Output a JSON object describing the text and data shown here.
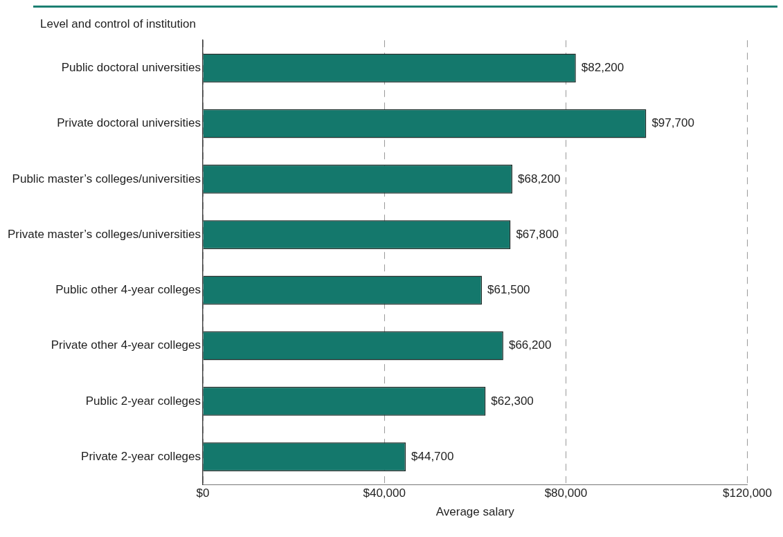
{
  "chart_data": {
    "type": "bar",
    "orientation": "horizontal",
    "ylabel": "Level and control of institution",
    "xlabel": "Average salary",
    "categories": [
      "Public doctoral universities",
      "Private doctoral universities",
      "Public master’s colleges/universities",
      "Private master’s colleges/universities",
      "Public other 4-year colleges",
      "Private other 4-year colleges",
      "Public 2-year colleges",
      "Private 2-year colleges"
    ],
    "values": [
      82200,
      97700,
      68200,
      67800,
      61500,
      66200,
      62300,
      44700
    ],
    "value_labels": [
      "$82,200",
      "$97,700",
      "$68,200",
      "$67,800",
      "$61,500",
      "$66,200",
      "$62,300",
      "$44,700"
    ],
    "color": "#14786c",
    "xlim": [
      0,
      120000
    ],
    "xticks": [
      {
        "value": 0,
        "label": "$0"
      },
      {
        "value": 40000,
        "label": "$40,000"
      },
      {
        "value": 80000,
        "label": "$80,000"
      },
      {
        "value": 120000,
        "label": "$120,000"
      }
    ],
    "grid": "x",
    "legend": false
  }
}
